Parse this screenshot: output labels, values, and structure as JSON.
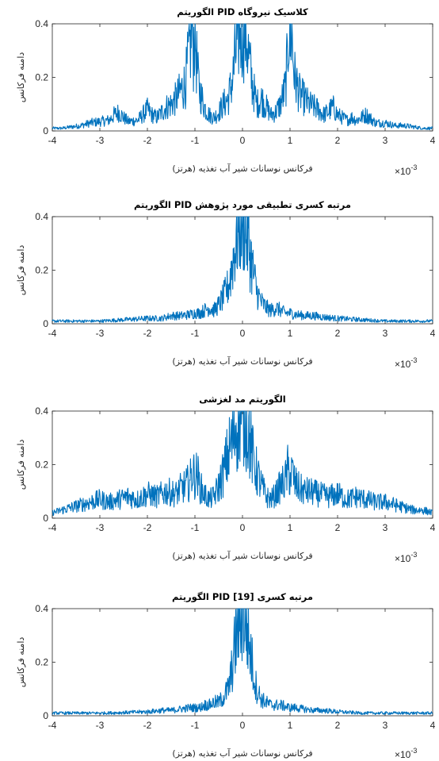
{
  "chart_data": [
    {
      "type": "line",
      "title": "الگوریتم PID کلاسیک نیروگاه",
      "xlabel": "فرکانس نوسانات شیر آب تغذیه (هرتز)",
      "ylabel": "دامنه فرکانس",
      "x_exponent_label": "×10",
      "x_exponent": "-3",
      "xlim": [
        -4,
        4
      ],
      "ylim": [
        0,
        0.4
      ],
      "xticks": [
        "-4",
        "-3",
        "-2",
        "-1",
        "0",
        "1",
        "2",
        "3",
        "4"
      ],
      "yticks": [
        "0",
        "0.2",
        "0.4"
      ],
      "color": "#0072BD",
      "series": [
        {
          "x": [
            -4,
            -3.8,
            -3.6,
            -3.4,
            -3.2,
            -3,
            -2.8,
            -2.7,
            -2.6,
            -2.5,
            -2.4,
            -2.2,
            -2.1,
            -2,
            -1.9,
            -1.8,
            -1.7,
            -1.6,
            -1.5,
            -1.4,
            -1.3,
            -1.2,
            -1.15,
            -1.1,
            -1.06,
            -1.03,
            -1,
            -0.97,
            -0.94,
            -0.9,
            -0.8,
            -0.7,
            -0.6,
            -0.5,
            -0.4,
            -0.3,
            -0.2,
            -0.15,
            -0.1,
            -0.05,
            0,
            0.05,
            0.1,
            0.15,
            0.2,
            0.3,
            0.4,
            0.5,
            0.6,
            0.7,
            0.8,
            0.9,
            0.94,
            0.97,
            1,
            1.03,
            1.06,
            1.1,
            1.2,
            1.3,
            1.4,
            1.5,
            1.6,
            1.7,
            1.8,
            1.9,
            2,
            2.1,
            2.2,
            2.3,
            2.4,
            2.6,
            2.8,
            3,
            3.2,
            3.4,
            3.6,
            3.8,
            4
          ],
          "y": [
            0.01,
            0.01,
            0.015,
            0.02,
            0.03,
            0.035,
            0.04,
            0.06,
            0.07,
            0.05,
            0.035,
            0.04,
            0.06,
            0.08,
            0.06,
            0.05,
            0.07,
            0.09,
            0.1,
            0.12,
            0.15,
            0.18,
            0.25,
            0.32,
            0.4,
            0.3,
            0.4,
            0.28,
            0.2,
            0.15,
            0.09,
            0.06,
            0.05,
            0.07,
            0.1,
            0.12,
            0.2,
            0.28,
            0.34,
            0.4,
            0.38,
            0.4,
            0.33,
            0.25,
            0.18,
            0.1,
            0.12,
            0.09,
            0.06,
            0.07,
            0.1,
            0.16,
            0.25,
            0.4,
            0.32,
            0.4,
            0.28,
            0.2,
            0.14,
            0.12,
            0.1,
            0.09,
            0.08,
            0.06,
            0.07,
            0.09,
            0.06,
            0.05,
            0.04,
            0.05,
            0.04,
            0.06,
            0.03,
            0.03,
            0.02,
            0.02,
            0.015,
            0.01,
            0.01
          ]
        }
      ]
    },
    {
      "type": "line",
      "title": "الگوریتم PID مرتبه کسری تطبیقی مورد پژوهش",
      "xlabel": "فرکانس نوسانات شیر آب تغذیه (هرتز)",
      "ylabel": "دامنه فرکانس",
      "x_exponent_label": "×10",
      "x_exponent": "-3",
      "xlim": [
        -4,
        4
      ],
      "ylim": [
        0,
        0.4
      ],
      "xticks": [
        "-4",
        "-3",
        "-2",
        "-1",
        "0",
        "1",
        "2",
        "3",
        "4"
      ],
      "yticks": [
        "0",
        "0.2",
        "0.4"
      ],
      "color": "#0072BD",
      "series": [
        {
          "x": [
            -4,
            -3.5,
            -3,
            -2.5,
            -2,
            -1.7,
            -1.5,
            -1.3,
            -1.1,
            -1,
            -0.9,
            -0.8,
            -0.7,
            -0.6,
            -0.5,
            -0.4,
            -0.3,
            -0.25,
            -0.2,
            -0.15,
            -0.1,
            -0.05,
            0,
            0.05,
            0.1,
            0.15,
            0.2,
            0.25,
            0.3,
            0.4,
            0.5,
            0.6,
            0.7,
            0.8,
            0.9,
            1,
            1.1,
            1.3,
            1.5,
            1.7,
            2,
            2.5,
            3,
            3.5,
            4
          ],
          "y": [
            0.01,
            0.01,
            0.01,
            0.015,
            0.02,
            0.02,
            0.03,
            0.03,
            0.035,
            0.04,
            0.04,
            0.05,
            0.06,
            0.05,
            0.07,
            0.1,
            0.14,
            0.18,
            0.24,
            0.29,
            0.34,
            0.38,
            0.4,
            0.37,
            0.32,
            0.27,
            0.22,
            0.17,
            0.12,
            0.08,
            0.06,
            0.05,
            0.06,
            0.05,
            0.04,
            0.04,
            0.035,
            0.03,
            0.03,
            0.025,
            0.02,
            0.015,
            0.01,
            0.01,
            0.01
          ]
        }
      ]
    },
    {
      "type": "line",
      "title": "الگوریتم مد لغزشی",
      "xlabel": "فرکانس نوسانات شیر آب تغذیه (هرتز)",
      "ylabel": "دامنه فرکانس",
      "x_exponent_label": "×10",
      "x_exponent": "-3",
      "xlim": [
        -4,
        4
      ],
      "ylim": [
        0,
        0.4
      ],
      "xticks": [
        "-4",
        "-3",
        "-2",
        "-1",
        "0",
        "1",
        "2",
        "3",
        "4"
      ],
      "yticks": [
        "0",
        "0.2",
        "0.4"
      ],
      "color": "#0072BD",
      "series": [
        {
          "x": [
            -4,
            -3.8,
            -3.6,
            -3.4,
            -3.2,
            -3,
            -2.8,
            -2.6,
            -2.4,
            -2.2,
            -2,
            -1.8,
            -1.6,
            -1.4,
            -1.3,
            -1.2,
            -1.1,
            -1.05,
            -1,
            -0.95,
            -0.9,
            -0.8,
            -0.7,
            -0.6,
            -0.5,
            -0.4,
            -0.3,
            -0.2,
            -0.15,
            -0.1,
            -0.05,
            0,
            0.05,
            0.1,
            0.15,
            0.2,
            0.3,
            0.4,
            0.5,
            0.6,
            0.7,
            0.8,
            0.9,
            0.95,
            1,
            1.05,
            1.1,
            1.2,
            1.3,
            1.4,
            1.6,
            1.8,
            2,
            2.2,
            2.4,
            2.6,
            2.8,
            3,
            3.2,
            3.4,
            3.6,
            3.8,
            4
          ],
          "y": [
            0.02,
            0.03,
            0.04,
            0.05,
            0.06,
            0.07,
            0.06,
            0.07,
            0.08,
            0.07,
            0.09,
            0.08,
            0.1,
            0.09,
            0.11,
            0.12,
            0.14,
            0.18,
            0.15,
            0.17,
            0.12,
            0.09,
            0.07,
            0.08,
            0.12,
            0.17,
            0.24,
            0.3,
            0.34,
            0.37,
            0.4,
            0.39,
            0.4,
            0.36,
            0.3,
            0.24,
            0.17,
            0.12,
            0.08,
            0.07,
            0.09,
            0.12,
            0.14,
            0.18,
            0.16,
            0.17,
            0.13,
            0.11,
            0.1,
            0.1,
            0.09,
            0.08,
            0.09,
            0.07,
            0.08,
            0.07,
            0.06,
            0.06,
            0.05,
            0.04,
            0.03,
            0.03,
            0.02
          ]
        }
      ]
    },
    {
      "type": "line",
      "title": "الگوریتم PID مرتبه کسری [19]",
      "xlabel": "فرکانس نوسانات شیر آب تغذیه (هرتز)",
      "ylabel": "دامنه فرکانس",
      "x_exponent_label": "×10",
      "x_exponent": "-3",
      "xlim": [
        -4,
        4
      ],
      "ylim": [
        0,
        0.4
      ],
      "xticks": [
        "-4",
        "-3",
        "-2",
        "-1",
        "0",
        "1",
        "2",
        "3",
        "4"
      ],
      "yticks": [
        "0",
        "0.2",
        "0.4"
      ],
      "color": "#0072BD",
      "series": [
        {
          "x": [
            -4,
            -3.5,
            -3,
            -2.5,
            -2,
            -1.7,
            -1.5,
            -1.3,
            -1.1,
            -1,
            -0.9,
            -0.8,
            -0.7,
            -0.6,
            -0.5,
            -0.4,
            -0.3,
            -0.25,
            -0.2,
            -0.15,
            -0.1,
            -0.05,
            0,
            0.05,
            0.1,
            0.15,
            0.2,
            0.25,
            0.3,
            0.4,
            0.5,
            0.6,
            0.7,
            0.8,
            0.9,
            1,
            1.1,
            1.3,
            1.5,
            1.7,
            2,
            2.5,
            3,
            3.5,
            4
          ],
          "y": [
            0.01,
            0.01,
            0.01,
            0.012,
            0.015,
            0.02,
            0.02,
            0.025,
            0.03,
            0.03,
            0.03,
            0.04,
            0.04,
            0.05,
            0.05,
            0.07,
            0.1,
            0.14,
            0.2,
            0.27,
            0.33,
            0.38,
            0.4,
            0.37,
            0.32,
            0.26,
            0.2,
            0.14,
            0.1,
            0.06,
            0.05,
            0.04,
            0.04,
            0.04,
            0.035,
            0.03,
            0.03,
            0.025,
            0.02,
            0.02,
            0.015,
            0.01,
            0.01,
            0.01,
            0.01
          ]
        }
      ]
    }
  ]
}
